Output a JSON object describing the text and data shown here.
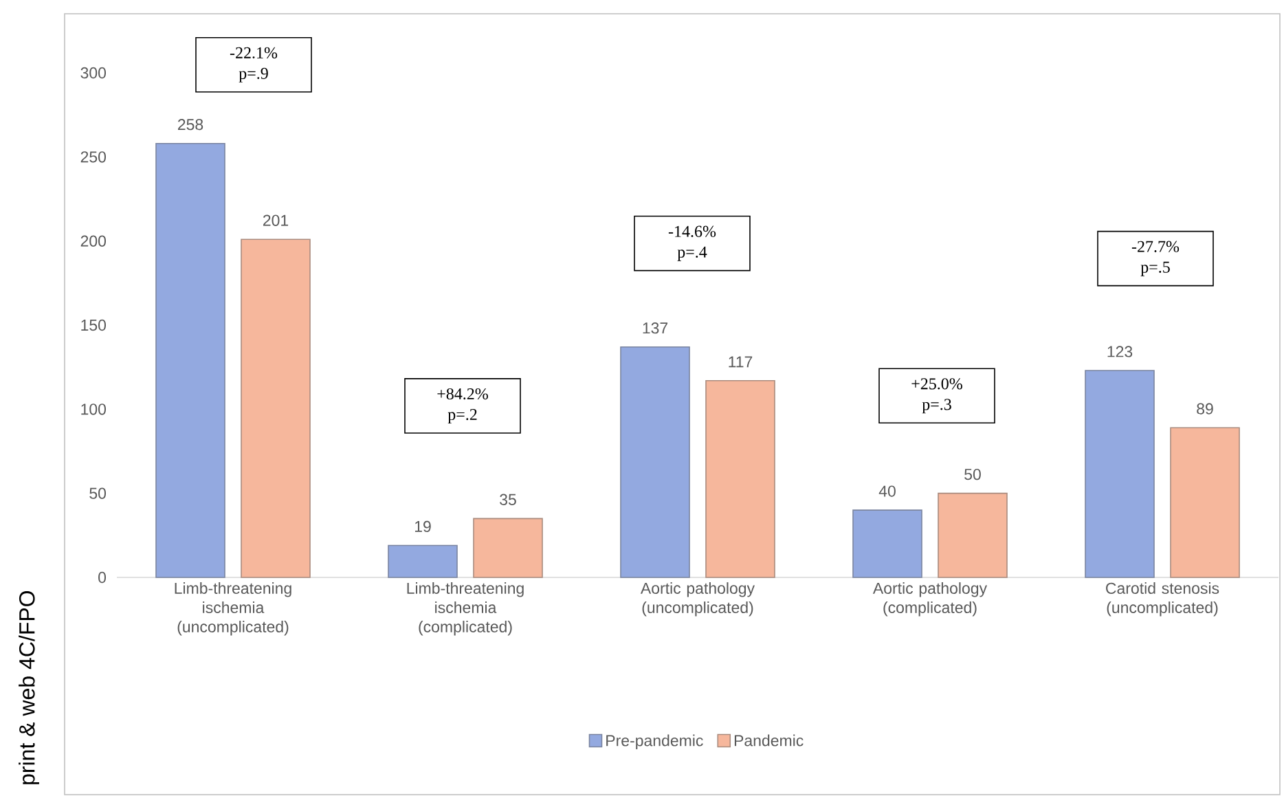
{
  "chart_data": {
    "type": "bar",
    "categories": [
      "Limb-threatening ischemia (uncomplicated)",
      "Limb-threatening ischemia (complicated)",
      "Aortic pathology (uncomplicated)",
      "Aortic pathology (complicated)",
      "Carotid stenosis (uncomplicated)"
    ],
    "series": [
      {
        "name": "Pre-pandemic",
        "color": "#93a9e0",
        "values": [
          258,
          19,
          137,
          40,
          123
        ]
      },
      {
        "name": "Pandemic",
        "color": "#f6b79c",
        "values": [
          201,
          35,
          117,
          50,
          89
        ]
      }
    ],
    "ylim": [
      0,
      300
    ],
    "yticks": [
      0,
      50,
      100,
      150,
      200,
      250,
      300
    ],
    "data_labels": true,
    "grid": false,
    "legend": "bottom",
    "annotations": [
      "-22.1% p=.9",
      "+84.2% p=.2",
      "-14.6% p=.4",
      "+25.0% p=.3",
      "-27.7% p=.5",
      "print & web 4C/FPO"
    ]
  }
}
